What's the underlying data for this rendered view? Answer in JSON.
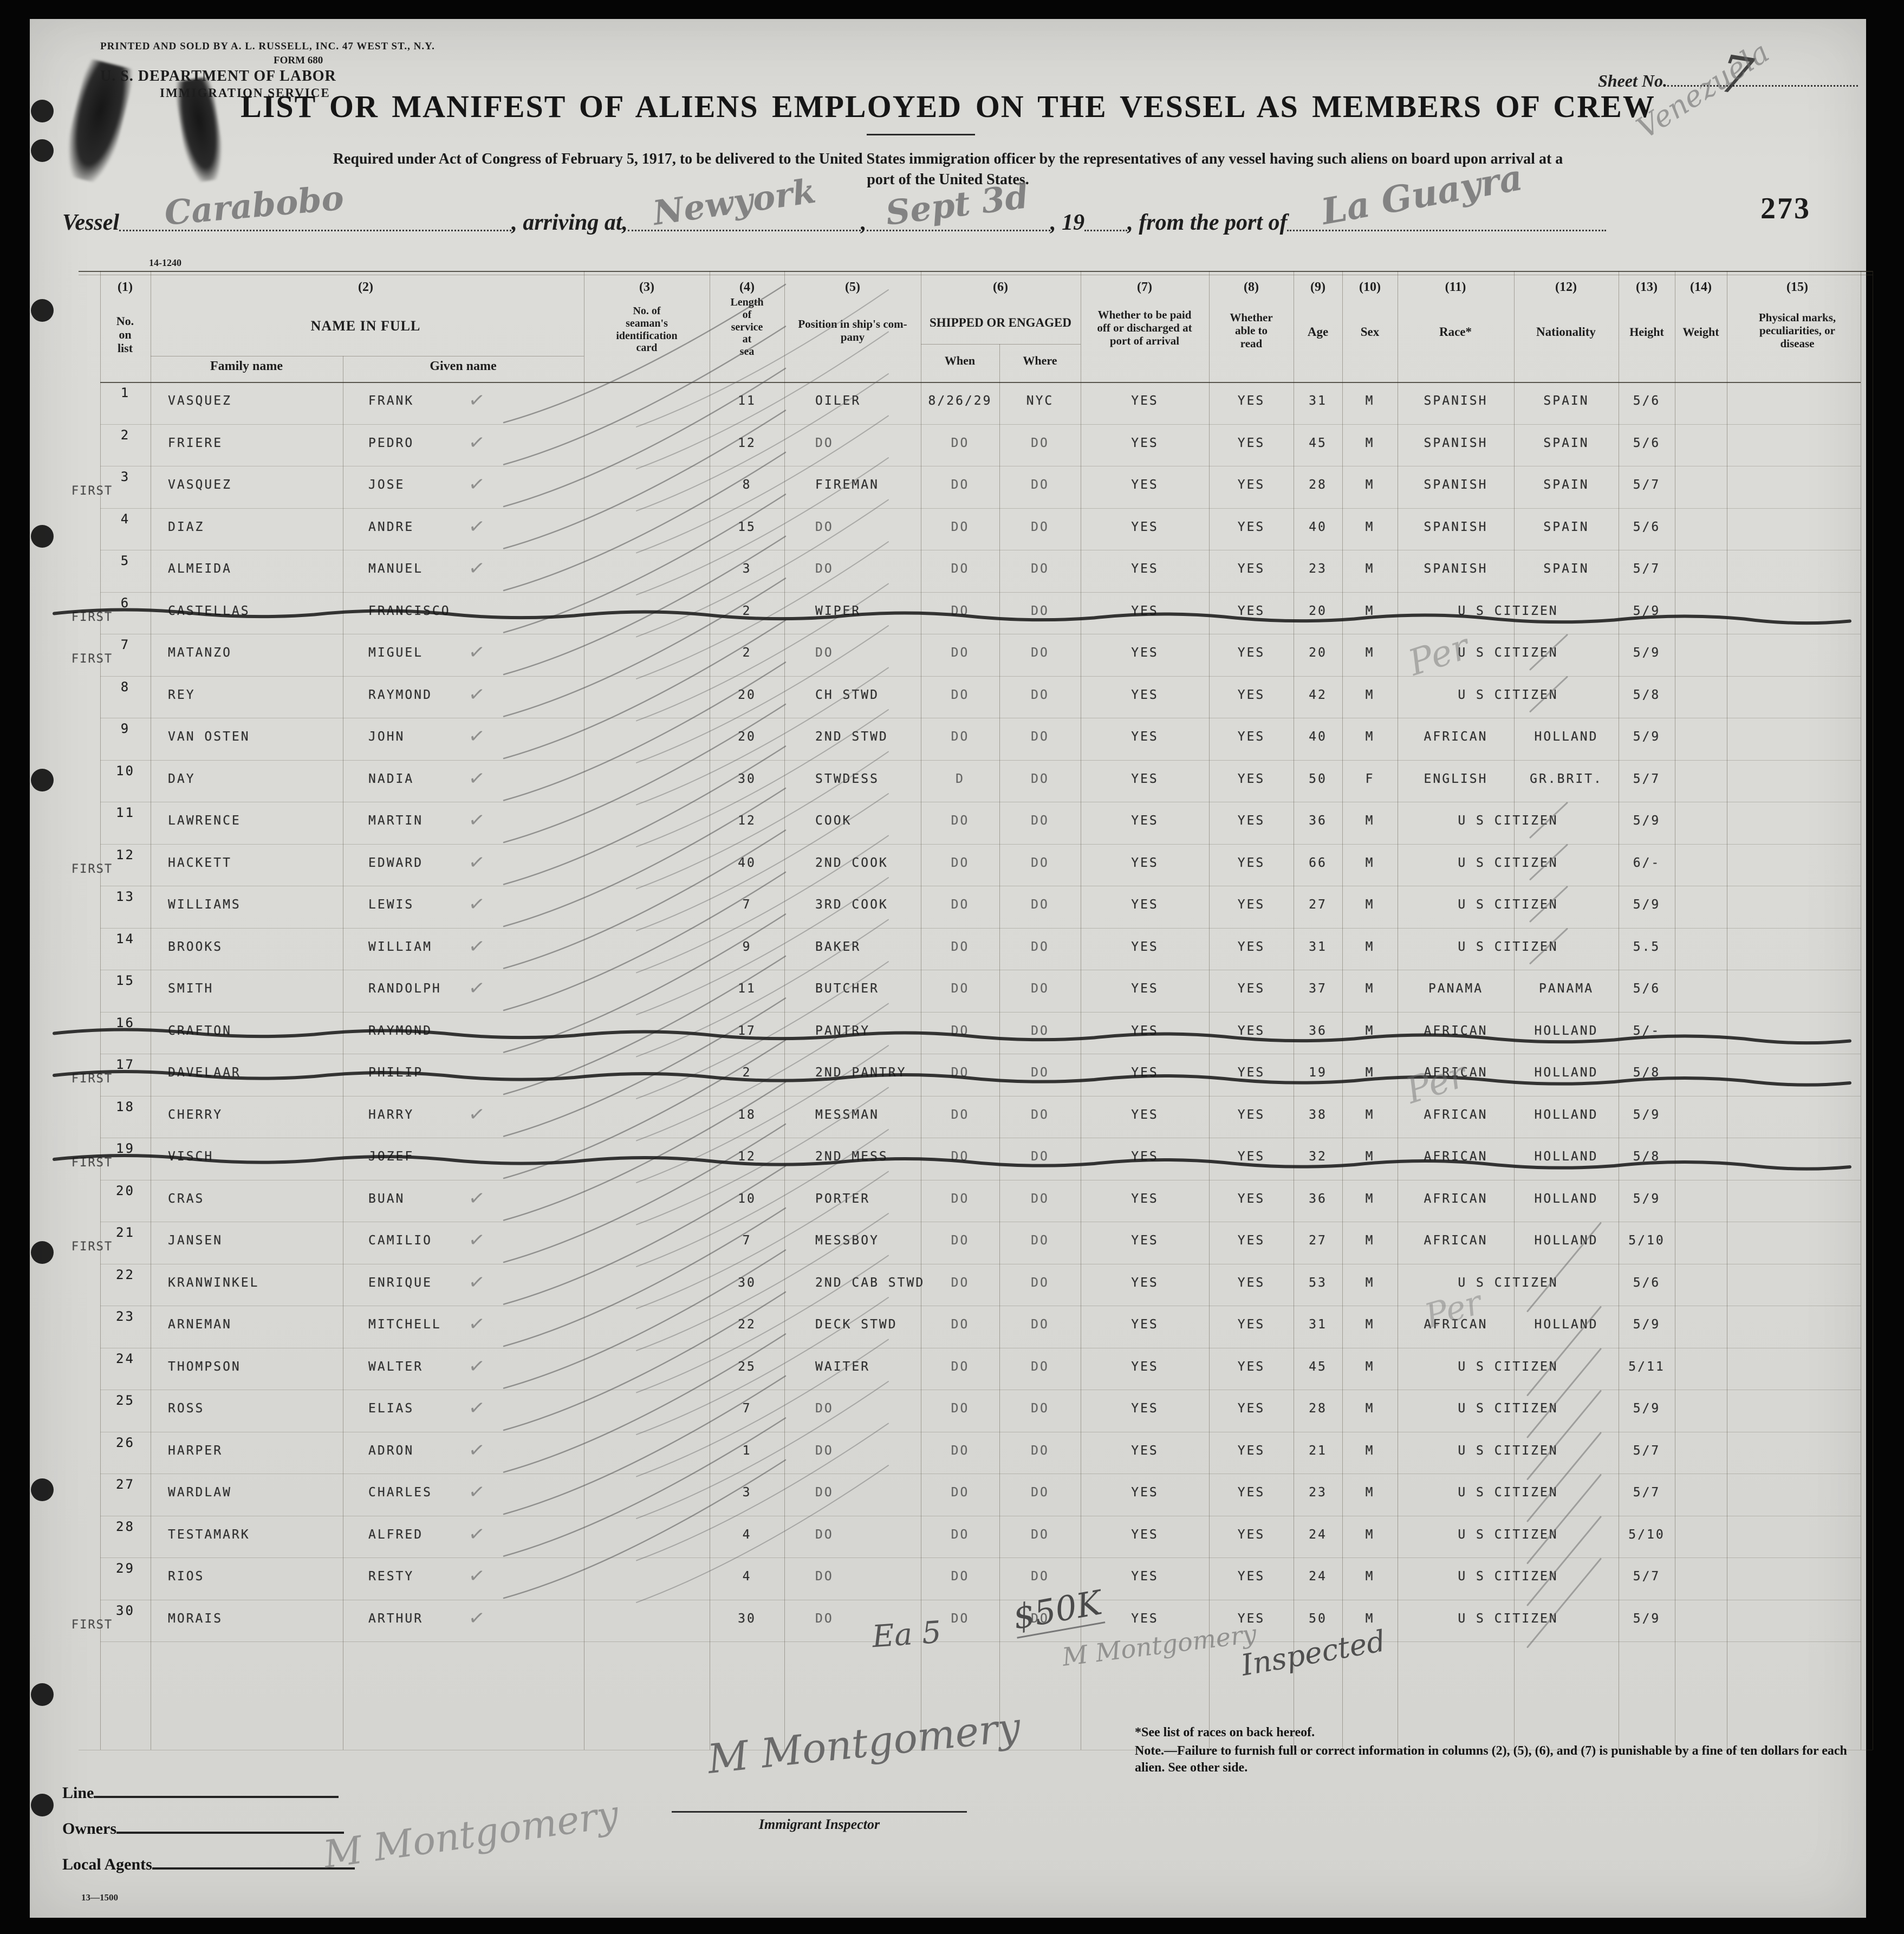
{
  "scan": {
    "page_number": "273",
    "sheet_label": "Sheet No.",
    "sheet_value": "7",
    "form_code_top": "14-1240",
    "form_code_bottom": "13—1500"
  },
  "header": {
    "printer_line": "PRINTED AND SOLD BY A. L. RUSSELL, INC. 47 WEST ST., N.Y.",
    "form_line": "FORM 680",
    "department": "U. S. DEPARTMENT OF LABOR",
    "service": "IMMIGRATION SERVICE",
    "title": "LIST OR MANIFEST OF ALIENS EMPLOYED ON THE VESSEL AS MEMBERS OF CREW",
    "subtitle_line1": "Required under Act of Congress of February 5, 1917, to be delivered to the United States immigration officer by the representatives of any vessel having such aliens on board upon arrival at a",
    "subtitle_line2": "port of the United States."
  },
  "vessel_line": {
    "vessel_label": "Vessel",
    "vessel_value": "Carabobo",
    "arriving_label": ", arriving at,",
    "arriving_value": "Newyork",
    "comma": ",",
    "date_value": "Sept 3d",
    "year_label": ", 19",
    "port_label": ", from the port of",
    "port_value": "La Guayra",
    "port_value_2": "Venezuela"
  },
  "table": {
    "columns": {
      "n1": "(1)",
      "n2": "(2)",
      "n3": "(3)",
      "n4": "(4)",
      "n5": "(5)",
      "n6": "(6)",
      "n7": "(7)",
      "n8": "(8)",
      "n9": "(9)",
      "n10": "(10)",
      "n11": "(11)",
      "n12": "(12)",
      "n13": "(13)",
      "n14": "(14)",
      "n15": "(15)",
      "c1": "No.\non\nlist",
      "c2": "NAME IN FULL",
      "c2a": "Family name",
      "c2b": "Given name",
      "c3": "No. of\nseaman's\nidentification\ncard",
      "c4": "Length\nof\nservice\nat\nsea",
      "c5": "Position in ship's com-\npany",
      "c6": "SHIPPED OR ENGAGED",
      "c6a": "When",
      "c6b": "Where",
      "c7": "Whether to be paid\noff or discharged at\nport of arrival",
      "c8": "Whether\nable to\nread",
      "c9": "Age",
      "c10": "Sex",
      "c11": "Race*",
      "c12": "Nationality",
      "c13": "Height",
      "c14": "Weight",
      "c15": "Physical marks,\npeculiarities, or\ndisease"
    },
    "rows": [
      {
        "no": "1",
        "first": false,
        "family": "VASQUEZ",
        "given": "FRANK",
        "check": true,
        "service": "11",
        "position": "OILER",
        "when": "8/26/29",
        "where": "NYC",
        "paid": "YES",
        "read": "YES",
        "age": "31",
        "sex": "M",
        "race": "SPANISH",
        "nationality": "SPAIN",
        "height": "5/6",
        "struck": false
      },
      {
        "no": "2",
        "first": false,
        "family": "FRIERE",
        "given": "PEDRO",
        "check": true,
        "service": "12",
        "position": "DO",
        "when": "DO",
        "where": "DO",
        "paid": "YES",
        "read": "YES",
        "age": "45",
        "sex": "M",
        "race": "SPANISH",
        "nationality": "SPAIN",
        "height": "5/6",
        "struck": false
      },
      {
        "no": "3",
        "first": true,
        "family": "VASQUEZ",
        "given": "JOSE",
        "check": true,
        "service": "8",
        "position": "FIREMAN",
        "when": "DO",
        "where": "DO",
        "paid": "YES",
        "read": "YES",
        "age": "28",
        "sex": "M",
        "race": "SPANISH",
        "nationality": "SPAIN",
        "height": "5/7",
        "struck": false
      },
      {
        "no": "4",
        "first": false,
        "family": "DIAZ",
        "given": "ANDRE",
        "check": true,
        "service": "15",
        "position": "DO",
        "when": "DO",
        "where": "DO",
        "paid": "YES",
        "read": "YES",
        "age": "40",
        "sex": "M",
        "race": "SPANISH",
        "nationality": "SPAIN",
        "height": "5/6",
        "struck": false
      },
      {
        "no": "5",
        "first": false,
        "family": "ALMEIDA",
        "given": "MANUEL",
        "check": true,
        "service": "3",
        "position": "DO",
        "when": "DO",
        "where": "DO",
        "paid": "YES",
        "read": "YES",
        "age": "23",
        "sex": "M",
        "race": "SPANISH",
        "nationality": "SPAIN",
        "height": "5/7",
        "struck": false
      },
      {
        "no": "6",
        "first": true,
        "family": "CASTELLAS",
        "given": "FRANCISCO",
        "check": false,
        "service": "2",
        "position": "WIPER",
        "when": "DO",
        "where": "DO",
        "paid": "YES",
        "read": "YES",
        "age": "20",
        "sex": "M",
        "race": "U S CITIZEN",
        "nationality": "",
        "height": "5/9",
        "struck": true
      },
      {
        "no": "7",
        "first": true,
        "family": "MATANZO",
        "given": "MIGUEL",
        "check": true,
        "service": "2",
        "position": "DO",
        "when": "DO",
        "where": "DO",
        "paid": "YES",
        "read": "YES",
        "age": "20",
        "sex": "M",
        "race": "U S CITIZEN",
        "nationality": "",
        "height": "5/9",
        "struck": false
      },
      {
        "no": "8",
        "first": false,
        "family": "REY",
        "given": "RAYMOND",
        "check": true,
        "service": "20",
        "position": "CH STWD",
        "when": "DO",
        "where": "DO",
        "paid": "YES",
        "read": "YES",
        "age": "42",
        "sex": "M",
        "race": "U S CITIZEN",
        "nationality": "",
        "height": "5/8",
        "struck": false
      },
      {
        "no": "9",
        "first": false,
        "family": "VAN OSTEN",
        "given": "JOHN",
        "check": true,
        "service": "20",
        "position": "2ND STWD",
        "when": "DO",
        "where": "DO",
        "paid": "YES",
        "read": "YES",
        "age": "40",
        "sex": "M",
        "race": "AFRICAN",
        "nationality": "HOLLAND",
        "height": "5/9",
        "struck": false
      },
      {
        "no": "10",
        "first": false,
        "family": "DAY",
        "given": "NADIA",
        "check": true,
        "service": "30",
        "position": "STWDESS",
        "when": "D",
        "where": "DO",
        "paid": "YES",
        "read": "YES",
        "age": "50",
        "sex": "F",
        "race": "ENGLISH",
        "nationality": "GR.BRIT.",
        "height": "5/7",
        "struck": false
      },
      {
        "no": "11",
        "first": false,
        "family": "LAWRENCE",
        "given": "MARTIN",
        "check": true,
        "service": "12",
        "position": "COOK",
        "when": "DO",
        "where": "DO",
        "paid": "YES",
        "read": "YES",
        "age": "36",
        "sex": "M",
        "race": "U S CITIZEN",
        "nationality": "",
        "height": "5/9",
        "struck": false
      },
      {
        "no": "12",
        "first": true,
        "family": "HACKETT",
        "given": "EDWARD",
        "check": true,
        "service": "40",
        "position": "2ND COOK",
        "when": "DO",
        "where": "DO",
        "paid": "YES",
        "read": "YES",
        "age": "66",
        "sex": "M",
        "race": "U S CITIZEN",
        "nationality": "",
        "height": "6/-",
        "struck": false
      },
      {
        "no": "13",
        "first": false,
        "family": "WILLIAMS",
        "given": "LEWIS",
        "check": true,
        "service": "7",
        "position": "3RD COOK",
        "when": "DO",
        "where": "DO",
        "paid": "YES",
        "read": "YES",
        "age": "27",
        "sex": "M",
        "race": "U S CITIZEN",
        "nationality": "",
        "height": "5/9",
        "struck": false
      },
      {
        "no": "14",
        "first": false,
        "family": "BROOKS",
        "given": "WILLIAM",
        "check": true,
        "service": "9",
        "position": "BAKER",
        "when": "DO",
        "where": "DO",
        "paid": "YES",
        "read": "YES",
        "age": "31",
        "sex": "M",
        "race": "U S CITIZEN",
        "nationality": "",
        "height": "5.5",
        "struck": false
      },
      {
        "no": "15",
        "first": false,
        "family": "SMITH",
        "given": "RANDOLPH",
        "check": true,
        "service": "11",
        "position": "BUTCHER",
        "when": "DO",
        "where": "DO",
        "paid": "YES",
        "read": "YES",
        "age": "37",
        "sex": "M",
        "race": "PANAMA",
        "nationality": "PANAMA",
        "height": "5/6",
        "struck": false
      },
      {
        "no": "16",
        "first": false,
        "family": "CRAFTON",
        "given": "RAYMOND",
        "check": false,
        "service": "17",
        "position": "PANTRY",
        "when": "DO",
        "where": "DO",
        "paid": "YES",
        "read": "YES",
        "age": "36",
        "sex": "M",
        "race": "AFRICAN",
        "nationality": "HOLLAND",
        "height": "5/-",
        "struck": true
      },
      {
        "no": "17",
        "first": true,
        "family": "DAVELAAR",
        "given": "PHILIP",
        "check": false,
        "service": "2",
        "position": "2ND PANTRY",
        "when": "DO",
        "where": "DO",
        "paid": "YES",
        "read": "YES",
        "age": "19",
        "sex": "M",
        "race": "AFRICAN",
        "nationality": "HOLLAND",
        "height": "5/8",
        "struck": true
      },
      {
        "no": "18",
        "first": false,
        "family": "CHERRY",
        "given": "HARRY",
        "check": true,
        "service": "18",
        "position": "MESSMAN",
        "when": "DO",
        "where": "DO",
        "paid": "YES",
        "read": "YES",
        "age": "38",
        "sex": "M",
        "race": "AFRICAN",
        "nationality": "HOLLAND",
        "height": "5/9",
        "struck": false
      },
      {
        "no": "19",
        "first": true,
        "family": "VISCH",
        "given": "JOZEF",
        "check": false,
        "service": "12",
        "position": "2ND MESS",
        "when": "DO",
        "where": "DO",
        "paid": "YES",
        "read": "YES",
        "age": "32",
        "sex": "M",
        "race": "AFRICAN",
        "nationality": "HOLLAND",
        "height": "5/8",
        "struck": true
      },
      {
        "no": "20",
        "first": false,
        "family": "CRAS",
        "given": "BUAN",
        "check": true,
        "service": "10",
        "position": "PORTER",
        "when": "DO",
        "where": "DO",
        "paid": "YES",
        "read": "YES",
        "age": "36",
        "sex": "M",
        "race": "AFRICAN",
        "nationality": "HOLLAND",
        "height": "5/9",
        "struck": false
      },
      {
        "no": "21",
        "first": true,
        "family": "JANSEN",
        "given": "CAMILIO",
        "check": true,
        "service": "7",
        "position": "MESSBOY",
        "when": "DO",
        "where": "DO",
        "paid": "YES",
        "read": "YES",
        "age": "27",
        "sex": "M",
        "race": "AFRICAN",
        "nationality": "HOLLAND",
        "height": "5/10",
        "struck": false
      },
      {
        "no": "22",
        "first": false,
        "family": "KRANWINKEL",
        "given": "ENRIQUE",
        "check": true,
        "service": "30",
        "position": "2ND CAB STWD",
        "when": "DO",
        "where": "DO",
        "paid": "YES",
        "read": "YES",
        "age": "53",
        "sex": "M",
        "race": "U S CITIZEN",
        "nationality": "",
        "height": "5/6",
        "struck": false
      },
      {
        "no": "23",
        "first": false,
        "family": "ARNEMAN",
        "given": "MITCHELL",
        "check": true,
        "service": "22",
        "position": "DECK STWD",
        "when": "DO",
        "where": "DO",
        "paid": "YES",
        "read": "YES",
        "age": "31",
        "sex": "M",
        "race": "AFRICAN",
        "nationality": "HOLLAND",
        "height": "5/9",
        "struck": false
      },
      {
        "no": "24",
        "first": false,
        "family": "THOMPSON",
        "given": "WALTER",
        "check": true,
        "service": "25",
        "position": "WAITER",
        "when": "DO",
        "where": "DO",
        "paid": "YES",
        "read": "YES",
        "age": "45",
        "sex": "M",
        "race": "U S CITIZEN",
        "nationality": "",
        "height": "5/11",
        "struck": false
      },
      {
        "no": "25",
        "first": false,
        "family": "ROSS",
        "given": "ELIAS",
        "check": true,
        "service": "7",
        "position": "DO",
        "when": "DO",
        "where": "DO",
        "paid": "YES",
        "read": "YES",
        "age": "28",
        "sex": "M",
        "race": "U S CITIZEN",
        "nationality": "",
        "height": "5/9",
        "struck": false
      },
      {
        "no": "26",
        "first": false,
        "family": "HARPER",
        "given": "ADRON",
        "check": true,
        "service": "1",
        "position": "DO",
        "when": "DO",
        "where": "DO",
        "paid": "YES",
        "read": "YES",
        "age": "21",
        "sex": "M",
        "race": "U S CITIZEN",
        "nationality": "",
        "height": "5/7",
        "struck": false
      },
      {
        "no": "27",
        "first": false,
        "family": "WARDLAW",
        "given": "CHARLES",
        "check": true,
        "service": "3",
        "position": "DO",
        "when": "DO",
        "where": "DO",
        "paid": "YES",
        "read": "YES",
        "age": "23",
        "sex": "M",
        "race": "U S CITIZEN",
        "nationality": "",
        "height": "5/7",
        "struck": false
      },
      {
        "no": "28",
        "first": false,
        "family": "TESTAMARK",
        "given": "ALFRED",
        "check": true,
        "service": "4",
        "position": "DO",
        "when": "DO",
        "where": "DO",
        "paid": "YES",
        "read": "YES",
        "age": "24",
        "sex": "M",
        "race": "U S CITIZEN",
        "nationality": "",
        "height": "5/10",
        "struck": false
      },
      {
        "no": "29",
        "first": false,
        "family": "RIOS",
        "given": "RESTY",
        "check": true,
        "service": "4",
        "position": "DO",
        "when": "DO",
        "where": "DO",
        "paid": "YES",
        "read": "YES",
        "age": "24",
        "sex": "M",
        "race": "U S CITIZEN",
        "nationality": "",
        "height": "5/7",
        "struck": false
      },
      {
        "no": "30",
        "first": true,
        "family": "MORAIS",
        "given": "ARTHUR",
        "check": true,
        "service": "30",
        "position": "DO",
        "when": "DO",
        "where": "DO",
        "paid": "YES",
        "read": "YES",
        "age": "50",
        "sex": "M",
        "race": "U S CITIZEN",
        "nationality": "",
        "height": "5/9",
        "struck": false
      }
    ],
    "first_stamp": "FIRST",
    "check_glyph": "✓"
  },
  "annotations": {
    "per": "Per",
    "ea": "Ea 5",
    "amount": "$50K",
    "montgomery": "M Montgomery",
    "inspected": "Inspected"
  },
  "footer": {
    "line_label": "Line",
    "owners_label": "Owners",
    "local_agents_label": "Local Agents",
    "inspector_label": "Immigrant Inspector",
    "note1": "*See list of races on back hereof.",
    "note2": "Note.—Failure to furnish full or correct information in columns (2), (5), (6), and (7) is punishable by a fine of ten dollars for each alien.  See other side."
  }
}
